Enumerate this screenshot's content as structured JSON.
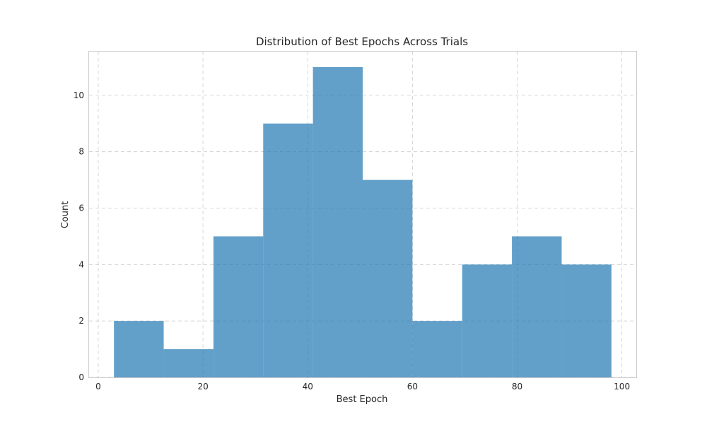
{
  "chart_data": {
    "type": "bar",
    "title": "Distribution of Best Epochs Across Trials",
    "xlabel": "Best Epoch",
    "ylabel": "Count",
    "bins": [
      {
        "x0": 3.0,
        "x1": 12.5,
        "count": 2
      },
      {
        "x0": 12.5,
        "x1": 22.0,
        "count": 1
      },
      {
        "x0": 22.0,
        "x1": 31.5,
        "count": 5
      },
      {
        "x0": 31.5,
        "x1": 41.0,
        "count": 9
      },
      {
        "x0": 41.0,
        "x1": 50.5,
        "count": 11
      },
      {
        "x0": 50.5,
        "x1": 60.0,
        "count": 7
      },
      {
        "x0": 60.0,
        "x1": 69.5,
        "count": 2
      },
      {
        "x0": 69.5,
        "x1": 79.0,
        "count": 4
      },
      {
        "x0": 79.0,
        "x1": 88.5,
        "count": 5
      },
      {
        "x0": 88.5,
        "x1": 98.0,
        "count": 4
      }
    ],
    "xlim": [
      -1.75,
      102.75
    ],
    "ylim": [
      0,
      11.55
    ],
    "xticks": [
      0,
      20,
      40,
      60,
      80,
      100
    ],
    "yticks": [
      0,
      2,
      4,
      6,
      8,
      10
    ],
    "grid": true,
    "bar_color": "#1f77b4",
    "bar_opacity": 0.7
  }
}
